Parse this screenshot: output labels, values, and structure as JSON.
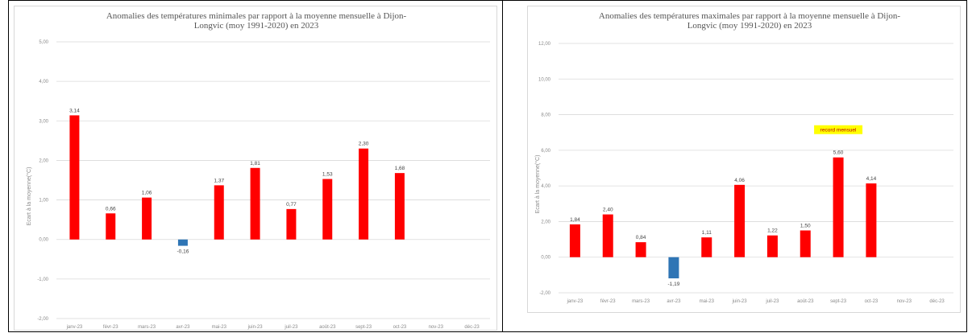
{
  "chart_data": [
    {
      "type": "bar",
      "title_lines": [
        "Anomalies des températures minimales par rapport à la moyenne mensuelle à Dijon-",
        "Longvic (moy 1991-2020) en 2023"
      ],
      "ylabel": "Ecart à la moyenne(°C)",
      "categories": [
        "janv-23",
        "févr-23",
        "mars-23",
        "avr-23",
        "mai-23",
        "juin-23",
        "juil-23",
        "août-23",
        "sept-23",
        "oct-23",
        "nov-23",
        "déc-23"
      ],
      "values": [
        3.14,
        0.66,
        1.06,
        -0.16,
        1.37,
        1.81,
        0.77,
        1.53,
        2.3,
        1.68,
        null,
        null
      ],
      "data_labels": [
        "3,14",
        "0,66",
        "1,06",
        "-0,16",
        "1,37",
        "1,81",
        "0,77",
        "1,53",
        "2,30",
        "1,68",
        "",
        ""
      ],
      "yticks": [
        -2,
        -1,
        0,
        1,
        2,
        3,
        4,
        5
      ],
      "ytick_labels": [
        "-2,00",
        "-1,00",
        "0,00",
        "1,00",
        "2,00",
        "3,00",
        "4,00",
        "5,00"
      ],
      "ylim": [
        -2,
        5
      ],
      "grid": true,
      "colors": {
        "positive": "#ff0000",
        "negative": "#2f75b5",
        "grid": "#d9d9d9"
      }
    },
    {
      "type": "bar",
      "title_lines": [
        "Anomalies des températures maximales par rapport à la moyenne mensuelle à Dijon-",
        "Longvic (moy 1991-2020) en 2023"
      ],
      "ylabel": "Ecart à la moyenne(°C)",
      "categories": [
        "janv-23",
        "févr-23",
        "mars-23",
        "avr-23",
        "mai-23",
        "juin-23",
        "juil-23",
        "août-23",
        "sept-23",
        "oct-23",
        "nov-23",
        "déc-23"
      ],
      "values": [
        1.84,
        2.4,
        0.84,
        -1.19,
        1.11,
        4.06,
        1.22,
        1.5,
        5.6,
        4.14,
        null,
        null
      ],
      "data_labels": [
        "1,84",
        "2,40",
        "0,84",
        "-1,19",
        "1,11",
        "4,06",
        "1,22",
        "1,50",
        "5,60",
        "4,14",
        "",
        ""
      ],
      "yticks": [
        -2,
        0,
        2,
        4,
        6,
        8,
        10,
        12
      ],
      "ytick_labels": [
        "-2,00",
        "0,00",
        "2,00",
        "4,00",
        "6,00",
        "8,00",
        "10,00",
        "12,00"
      ],
      "ylim": [
        -2,
        12
      ],
      "grid": true,
      "annotation": {
        "text": "record mensuel",
        "category": "sept-23",
        "background": "#ffff00"
      },
      "colors": {
        "positive": "#ff0000",
        "negative": "#2f75b5",
        "grid": "#d9d9d9"
      }
    }
  ]
}
